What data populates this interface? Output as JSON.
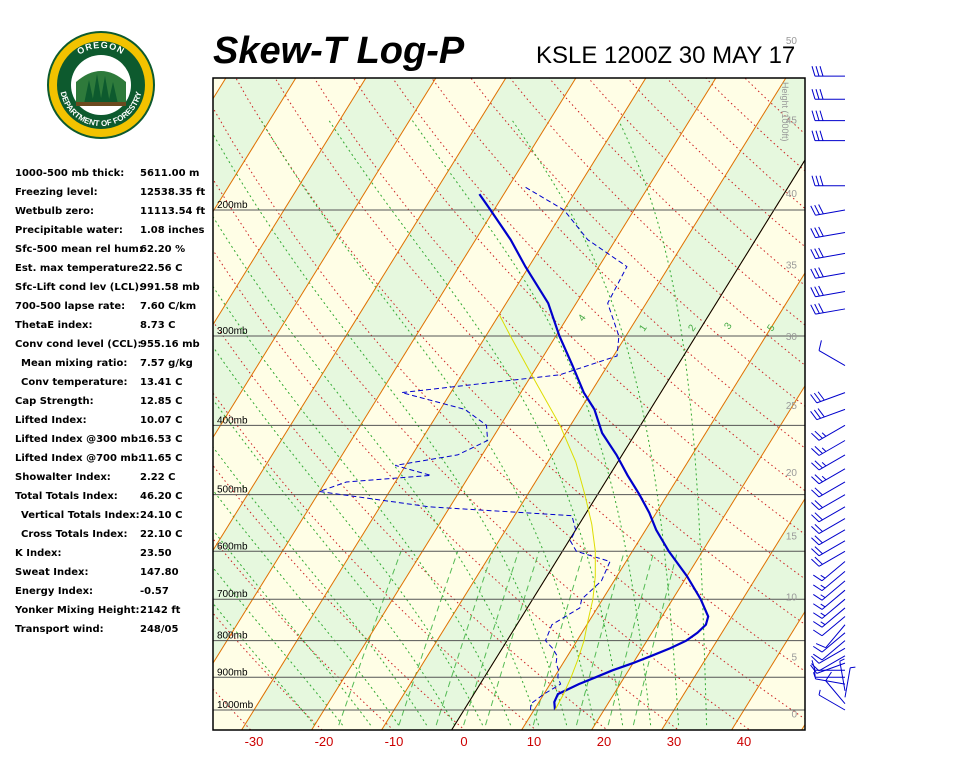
{
  "header": {
    "title": "Skew-T Log-P",
    "station_time": "KSLE 1200Z 30 MAY 17",
    "logo_text": "OREGON DEPARTMENT OF FORESTRY"
  },
  "indices": [
    {
      "label": "1000-500 mb thick:",
      "value": "5611.00 m"
    },
    {
      "label": "Freezing level:",
      "value": "12538.35 ft"
    },
    {
      "label": "Wetbulb zero:",
      "value": "11113.54 ft"
    },
    {
      "label": "Precipitable water:",
      "value": "1.08 inches"
    },
    {
      "label": "Sfc-500 mean rel hum:",
      "value": "62.20 %"
    },
    {
      "label": "Est. max temperature:",
      "value": "22.56 C"
    },
    {
      "label": "Sfc-Lift cond lev (LCL):",
      "value": "991.58 mb"
    },
    {
      "label": "700-500 lapse rate:",
      "value": "7.60 C/km"
    },
    {
      "label": "ThetaE index:",
      "value": "8.73 C"
    },
    {
      "label": "Conv cond level (CCL):",
      "value": "955.16 mb"
    },
    {
      "label": "Mean mixing ratio:",
      "value": "7.57 g/kg",
      "indent": true
    },
    {
      "label": "Conv temperature:",
      "value": "13.41 C",
      "indent": true
    },
    {
      "label": "Cap Strength:",
      "value": "12.85 C"
    },
    {
      "label": "Lifted Index:",
      "value": "10.07 C"
    },
    {
      "label": "Lifted Index @300 mb:",
      "value": "16.53 C"
    },
    {
      "label": "Lifted Index @700 mb:",
      "value": "11.65 C"
    },
    {
      "label": "Showalter Index:",
      "value": "2.22 C"
    },
    {
      "label": "Total Totals Index:",
      "value": "46.20 C"
    },
    {
      "label": "Vertical Totals Index:",
      "value": "24.10 C",
      "indent": true
    },
    {
      "label": "Cross Totals Index:",
      "value": "22.10 C",
      "indent": true
    },
    {
      "label": "K Index:",
      "value": "23.50"
    },
    {
      "label": "Sweat Index:",
      "value": "147.80"
    },
    {
      "label": "Energy Index:",
      "value": "-0.57"
    },
    {
      "label": "Yonker Mixing Height:",
      "value": "2142 ft"
    },
    {
      "label": "Transport wind:",
      "value": "248/05"
    }
  ],
  "chart_data": {
    "type": "line",
    "title": "Skew-T Log-P",
    "x_ticks": [
      -30,
      -20,
      -10,
      0,
      10,
      20,
      30,
      40
    ],
    "pressure_levels": [
      {
        "p": 200,
        "label": "200mb"
      },
      {
        "p": 300,
        "label": "300mb"
      },
      {
        "p": 400,
        "label": "400mb"
      },
      {
        "p": 500,
        "label": "500mb"
      },
      {
        "p": 600,
        "label": "600mb"
      },
      {
        "p": 700,
        "label": "700mb"
      },
      {
        "p": 800,
        "label": "800mb"
      },
      {
        "p": 900,
        "label": "900mb"
      },
      {
        "p": 1000,
        "label": "1000mb"
      }
    ],
    "height_axis": {
      "title": "Height (1000ft)",
      "ticks": [
        {
          "label": "0",
          "p": 1014
        },
        {
          "label": "5",
          "p": 845
        },
        {
          "label": "10",
          "p": 696
        },
        {
          "label": "15",
          "p": 572
        },
        {
          "label": "20",
          "p": 466
        },
        {
          "label": "25",
          "p": 376
        },
        {
          "label": "30",
          "p": 301
        },
        {
          "label": "35",
          "p": 239
        },
        {
          "label": "40",
          "p": 190
        },
        {
          "label": "45",
          "p": 150
        },
        {
          "label": "50",
          "p": 116
        }
      ]
    },
    "mixing_ratio_labels": [
      "4",
      "1",
      "2",
      "3",
      "5"
    ],
    "series": [
      {
        "role": "temperature",
        "color": "#0000cc",
        "points": [
          [
            1000,
            13.0
          ],
          [
            975,
            12.2
          ],
          [
            950,
            12.0
          ],
          [
            920,
            14.1
          ],
          [
            900,
            15.9
          ],
          [
            880,
            17.7
          ],
          [
            860,
            20.0
          ],
          [
            840,
            22.0
          ],
          [
            820,
            24.0
          ],
          [
            800,
            25.6
          ],
          [
            780,
            26.5
          ],
          [
            760,
            27.0
          ],
          [
            740,
            26.6
          ],
          [
            700,
            24.0
          ],
          [
            650,
            20.0
          ],
          [
            600,
            15.2
          ],
          [
            560,
            11.5
          ],
          [
            530,
            9.0
          ],
          [
            500,
            6.0
          ],
          [
            470,
            2.6
          ],
          [
            440,
            -0.8
          ],
          [
            410,
            -4.8
          ],
          [
            380,
            -8.0
          ],
          [
            360,
            -11.0
          ],
          [
            330,
            -15.0
          ],
          [
            300,
            -19.5
          ],
          [
            270,
            -24.0
          ],
          [
            240,
            -30.5
          ],
          [
            220,
            -35.0
          ],
          [
            200,
            -40.5
          ],
          [
            190,
            -43.5
          ]
        ]
      },
      {
        "role": "dewpoint",
        "color": "#0000cc",
        "dashed": true,
        "points": [
          [
            1000,
            9.5
          ],
          [
            980,
            9.0
          ],
          [
            950,
            10.0
          ],
          [
            920,
            11.5
          ],
          [
            900,
            10.5
          ],
          [
            880,
            10.0
          ],
          [
            860,
            9.0
          ],
          [
            840,
            8.5
          ],
          [
            820,
            7.2
          ],
          [
            800,
            5.5
          ],
          [
            760,
            5.0
          ],
          [
            720,
            7.5
          ],
          [
            700,
            7.0
          ],
          [
            660,
            8.2
          ],
          [
            620,
            7.7
          ],
          [
            600,
            2.0
          ],
          [
            580,
            0.2
          ],
          [
            560,
            0.0
          ],
          [
            535,
            -1.8
          ],
          [
            520,
            -23.0
          ],
          [
            495,
            -40.0
          ],
          [
            480,
            -37.0
          ],
          [
            470,
            -25.5
          ],
          [
            455,
            -31.5
          ],
          [
            440,
            -23.5
          ],
          [
            420,
            -20.5
          ],
          [
            400,
            -22.0
          ],
          [
            380,
            -26.5
          ],
          [
            360,
            -37.0
          ],
          [
            340,
            -16.0
          ],
          [
            320,
            -9.5
          ],
          [
            300,
            -11.0
          ],
          [
            270,
            -15.5
          ],
          [
            240,
            -16.0
          ],
          [
            220,
            -24.0
          ],
          [
            200,
            -30.0
          ],
          [
            185,
            -38.0
          ]
        ]
      },
      {
        "role": "parcel",
        "color": "#dddd00",
        "points": [
          [
            1000,
            13.0
          ],
          [
            950,
            12.8
          ],
          [
            900,
            12.4
          ],
          [
            850,
            11.8
          ],
          [
            800,
            11.0
          ],
          [
            750,
            9.8
          ],
          [
            700,
            8.6
          ],
          [
            650,
            6.9
          ],
          [
            600,
            4.7
          ],
          [
            550,
            1.8
          ],
          [
            500,
            -1.8
          ],
          [
            450,
            -6.0
          ],
          [
            400,
            -11.5
          ],
          [
            350,
            -18.5
          ],
          [
            300,
            -26.5
          ],
          [
            280,
            -30.0
          ]
        ]
      }
    ],
    "wind_barbs": [
      {
        "p": 1000,
        "dir": 300,
        "kt": 5
      },
      {
        "p": 980,
        "dir": 320,
        "kt": 8
      },
      {
        "p": 960,
        "dir": 10,
        "kt": 5
      },
      {
        "p": 940,
        "dir": 350,
        "kt": 6
      },
      {
        "p": 920,
        "dir": 280,
        "kt": 8
      },
      {
        "p": 900,
        "dir": 270,
        "kt": 6
      },
      {
        "p": 880,
        "dir": 270,
        "kt": 8
      },
      {
        "p": 860,
        "dir": 250,
        "kt": 10
      },
      {
        "p": 840,
        "dir": 240,
        "kt": 12
      },
      {
        "p": 820,
        "dir": 240,
        "kt": 12
      },
      {
        "p": 800,
        "dir": 230,
        "kt": 12
      },
      {
        "p": 780,
        "dir": 230,
        "kt": 10
      },
      {
        "p": 760,
        "dir": 220,
        "kt": 12
      },
      {
        "p": 740,
        "dir": 230,
        "kt": 12
      },
      {
        "p": 720,
        "dir": 230,
        "kt": 14
      },
      {
        "p": 700,
        "dir": 230,
        "kt": 14
      },
      {
        "p": 680,
        "dir": 230,
        "kt": 14
      },
      {
        "p": 660,
        "dir": 230,
        "kt": 16
      },
      {
        "p": 640,
        "dir": 230,
        "kt": 16
      },
      {
        "p": 620,
        "dir": 230,
        "kt": 16
      },
      {
        "p": 600,
        "dir": 240,
        "kt": 18
      },
      {
        "p": 580,
        "dir": 240,
        "kt": 18
      },
      {
        "p": 560,
        "dir": 240,
        "kt": 18
      },
      {
        "p": 540,
        "dir": 240,
        "kt": 20
      },
      {
        "p": 520,
        "dir": 240,
        "kt": 20
      },
      {
        "p": 500,
        "dir": 240,
        "kt": 22
      },
      {
        "p": 480,
        "dir": 240,
        "kt": 22
      },
      {
        "p": 460,
        "dir": 240,
        "kt": 24
      },
      {
        "p": 440,
        "dir": 240,
        "kt": 24
      },
      {
        "p": 420,
        "dir": 240,
        "kt": 26
      },
      {
        "p": 400,
        "dir": 240,
        "kt": 26
      },
      {
        "p": 380,
        "dir": 250,
        "kt": 28
      },
      {
        "p": 360,
        "dir": 250,
        "kt": 28
      },
      {
        "p": 330,
        "dir": 300,
        "kt": 10
      },
      {
        "p": 275,
        "dir": 260,
        "kt": 30
      },
      {
        "p": 260,
        "dir": 260,
        "kt": 30
      },
      {
        "p": 245,
        "dir": 260,
        "kt": 30
      },
      {
        "p": 230,
        "dir": 260,
        "kt": 30
      },
      {
        "p": 215,
        "dir": 260,
        "kt": 30
      },
      {
        "p": 200,
        "dir": 260,
        "kt": 30
      },
      {
        "p": 185,
        "dir": 270,
        "kt": 30
      },
      {
        "p": 160,
        "dir": 270,
        "kt": 30
      },
      {
        "p": 150,
        "dir": 270,
        "kt": 30
      },
      {
        "p": 140,
        "dir": 270,
        "kt": 30
      },
      {
        "p": 130,
        "dir": 270,
        "kt": 30
      },
      {
        "p": 120,
        "dir": 270,
        "kt": 30
      },
      {
        "p": 108,
        "dir": 270,
        "kt": 30
      },
      {
        "p": 95,
        "dir": 300,
        "kt": 20
      }
    ]
  }
}
